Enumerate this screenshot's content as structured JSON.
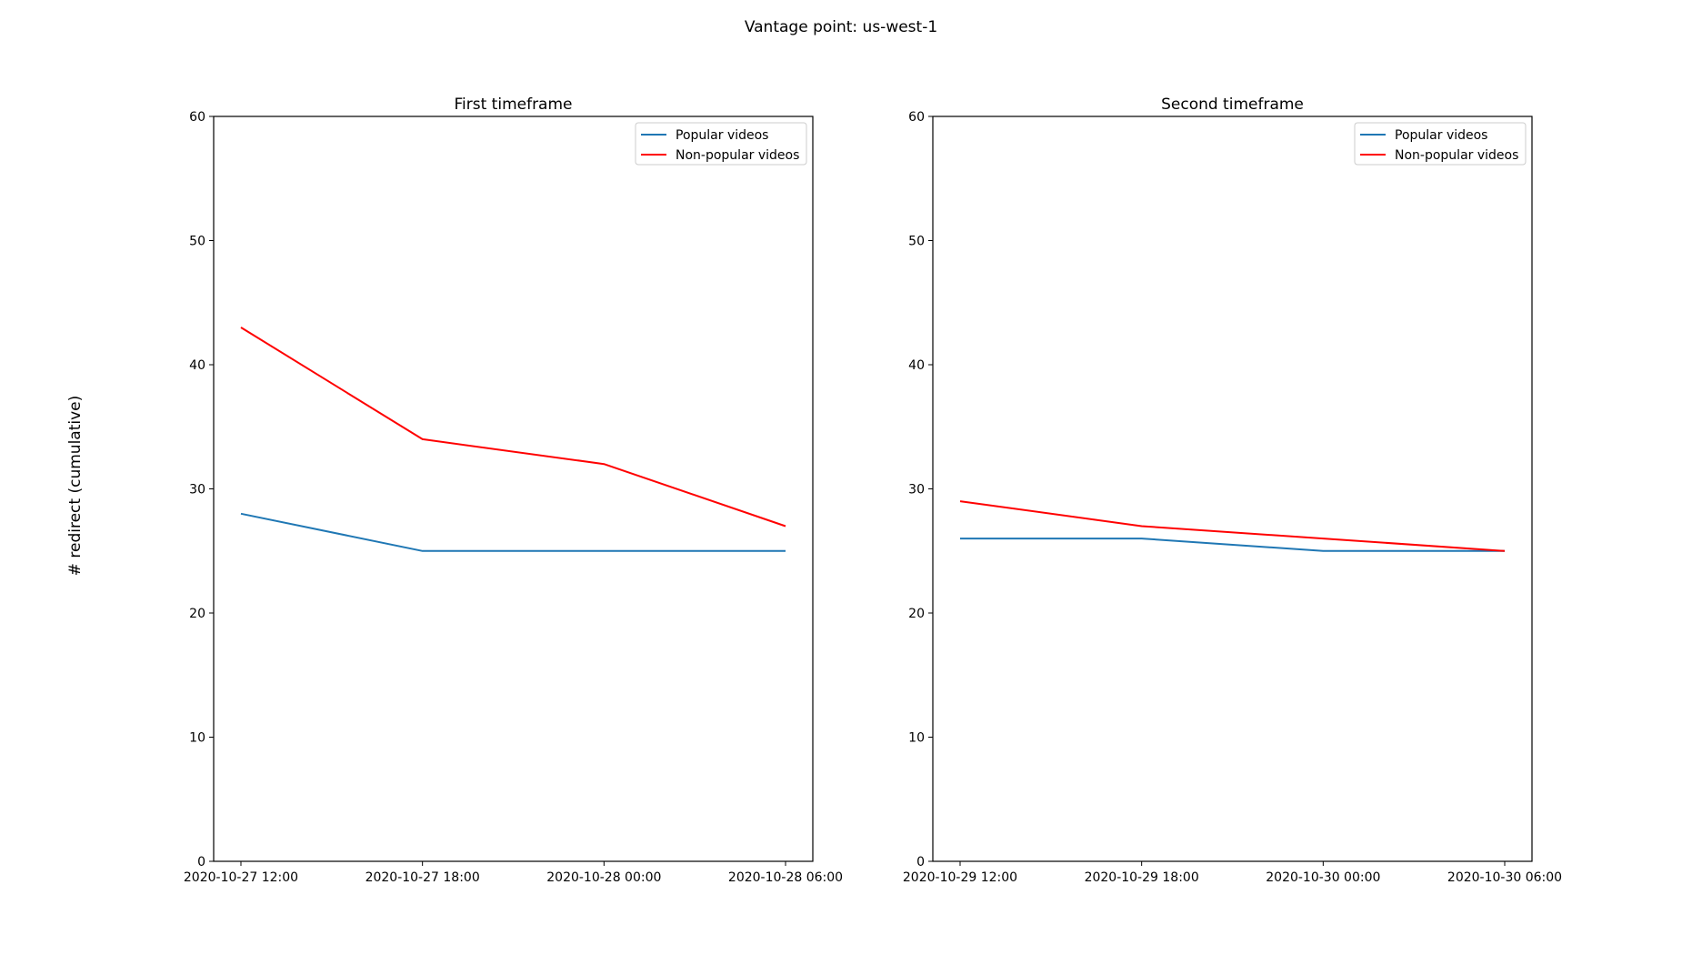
{
  "figure": {
    "suptitle": "Vantage point: us-west-1",
    "ylabel": "# redirect (cumulative)"
  },
  "chart_data": [
    {
      "type": "line",
      "title": "First timeframe",
      "xlabel": "",
      "ylabel": "# redirect (cumulative)",
      "ylim": [
        0,
        60
      ],
      "yticks": [
        0,
        10,
        20,
        30,
        40,
        50,
        60
      ],
      "categories": [
        "2020-10-27 12:00",
        "2020-10-27 18:00",
        "2020-10-28 00:00",
        "2020-10-28 06:00"
      ],
      "grid": false,
      "legend": "upper right",
      "series": [
        {
          "name": "Popular videos",
          "color": "#1f77b4",
          "values": [
            28,
            25,
            25,
            25
          ]
        },
        {
          "name": "Non-popular videos",
          "color": "#ff0000",
          "values": [
            43,
            34,
            32,
            27
          ]
        }
      ]
    },
    {
      "type": "line",
      "title": "Second timeframe",
      "xlabel": "",
      "ylabel": "",
      "ylim": [
        0,
        60
      ],
      "yticks": [
        0,
        10,
        20,
        30,
        40,
        50,
        60
      ],
      "categories": [
        "2020-10-29 12:00",
        "2020-10-29 18:00",
        "2020-10-30 00:00",
        "2020-10-30 06:00"
      ],
      "grid": false,
      "legend": "upper right",
      "series": [
        {
          "name": "Popular videos",
          "color": "#1f77b4",
          "values": [
            26,
            26,
            25,
            25
          ]
        },
        {
          "name": "Non-popular videos",
          "color": "#ff0000",
          "values": [
            29,
            27,
            26,
            25
          ]
        }
      ]
    }
  ]
}
